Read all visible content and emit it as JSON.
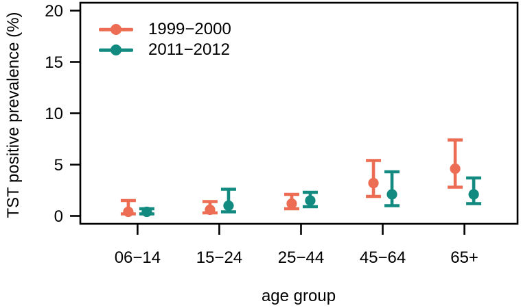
{
  "figure": {
    "background": "#ffffff",
    "axis_color": "#000000",
    "ylabel": "TST positive prevalence (%)",
    "xlabel": "age group"
  },
  "chart_data": {
    "type": "scatter",
    "subtype": "point-estimates-with-error-bars",
    "title": "",
    "xlabel": "age group",
    "ylabel": "TST positive prevalence (%)",
    "categories": [
      "06−14",
      "15−24",
      "25−44",
      "45−64",
      "65+"
    ],
    "ylim": [
      0,
      20
    ],
    "yticks": [
      0,
      5,
      10,
      15,
      20
    ],
    "ytick_labels": [
      "0",
      "5",
      "10",
      "15",
      "20"
    ],
    "grid": false,
    "legend_position": "top-left-inside",
    "series": [
      {
        "name": "1999−2000",
        "color": "#EC6D53",
        "values": [
          0.4,
          0.6,
          1.2,
          3.2,
          4.6
        ],
        "ci_low": [
          0.2,
          0.3,
          0.7,
          1.9,
          2.8
        ],
        "ci_high": [
          1.5,
          1.4,
          2.1,
          5.4,
          7.4
        ]
      },
      {
        "name": "2011−2012",
        "color": "#128A80",
        "values": [
          0.4,
          1.0,
          1.5,
          2.1,
          2.1
        ],
        "ci_low": [
          0.2,
          0.4,
          0.9,
          1.0,
          1.2
        ],
        "ci_high": [
          0.7,
          2.6,
          2.3,
          4.3,
          3.7
        ]
      }
    ]
  }
}
